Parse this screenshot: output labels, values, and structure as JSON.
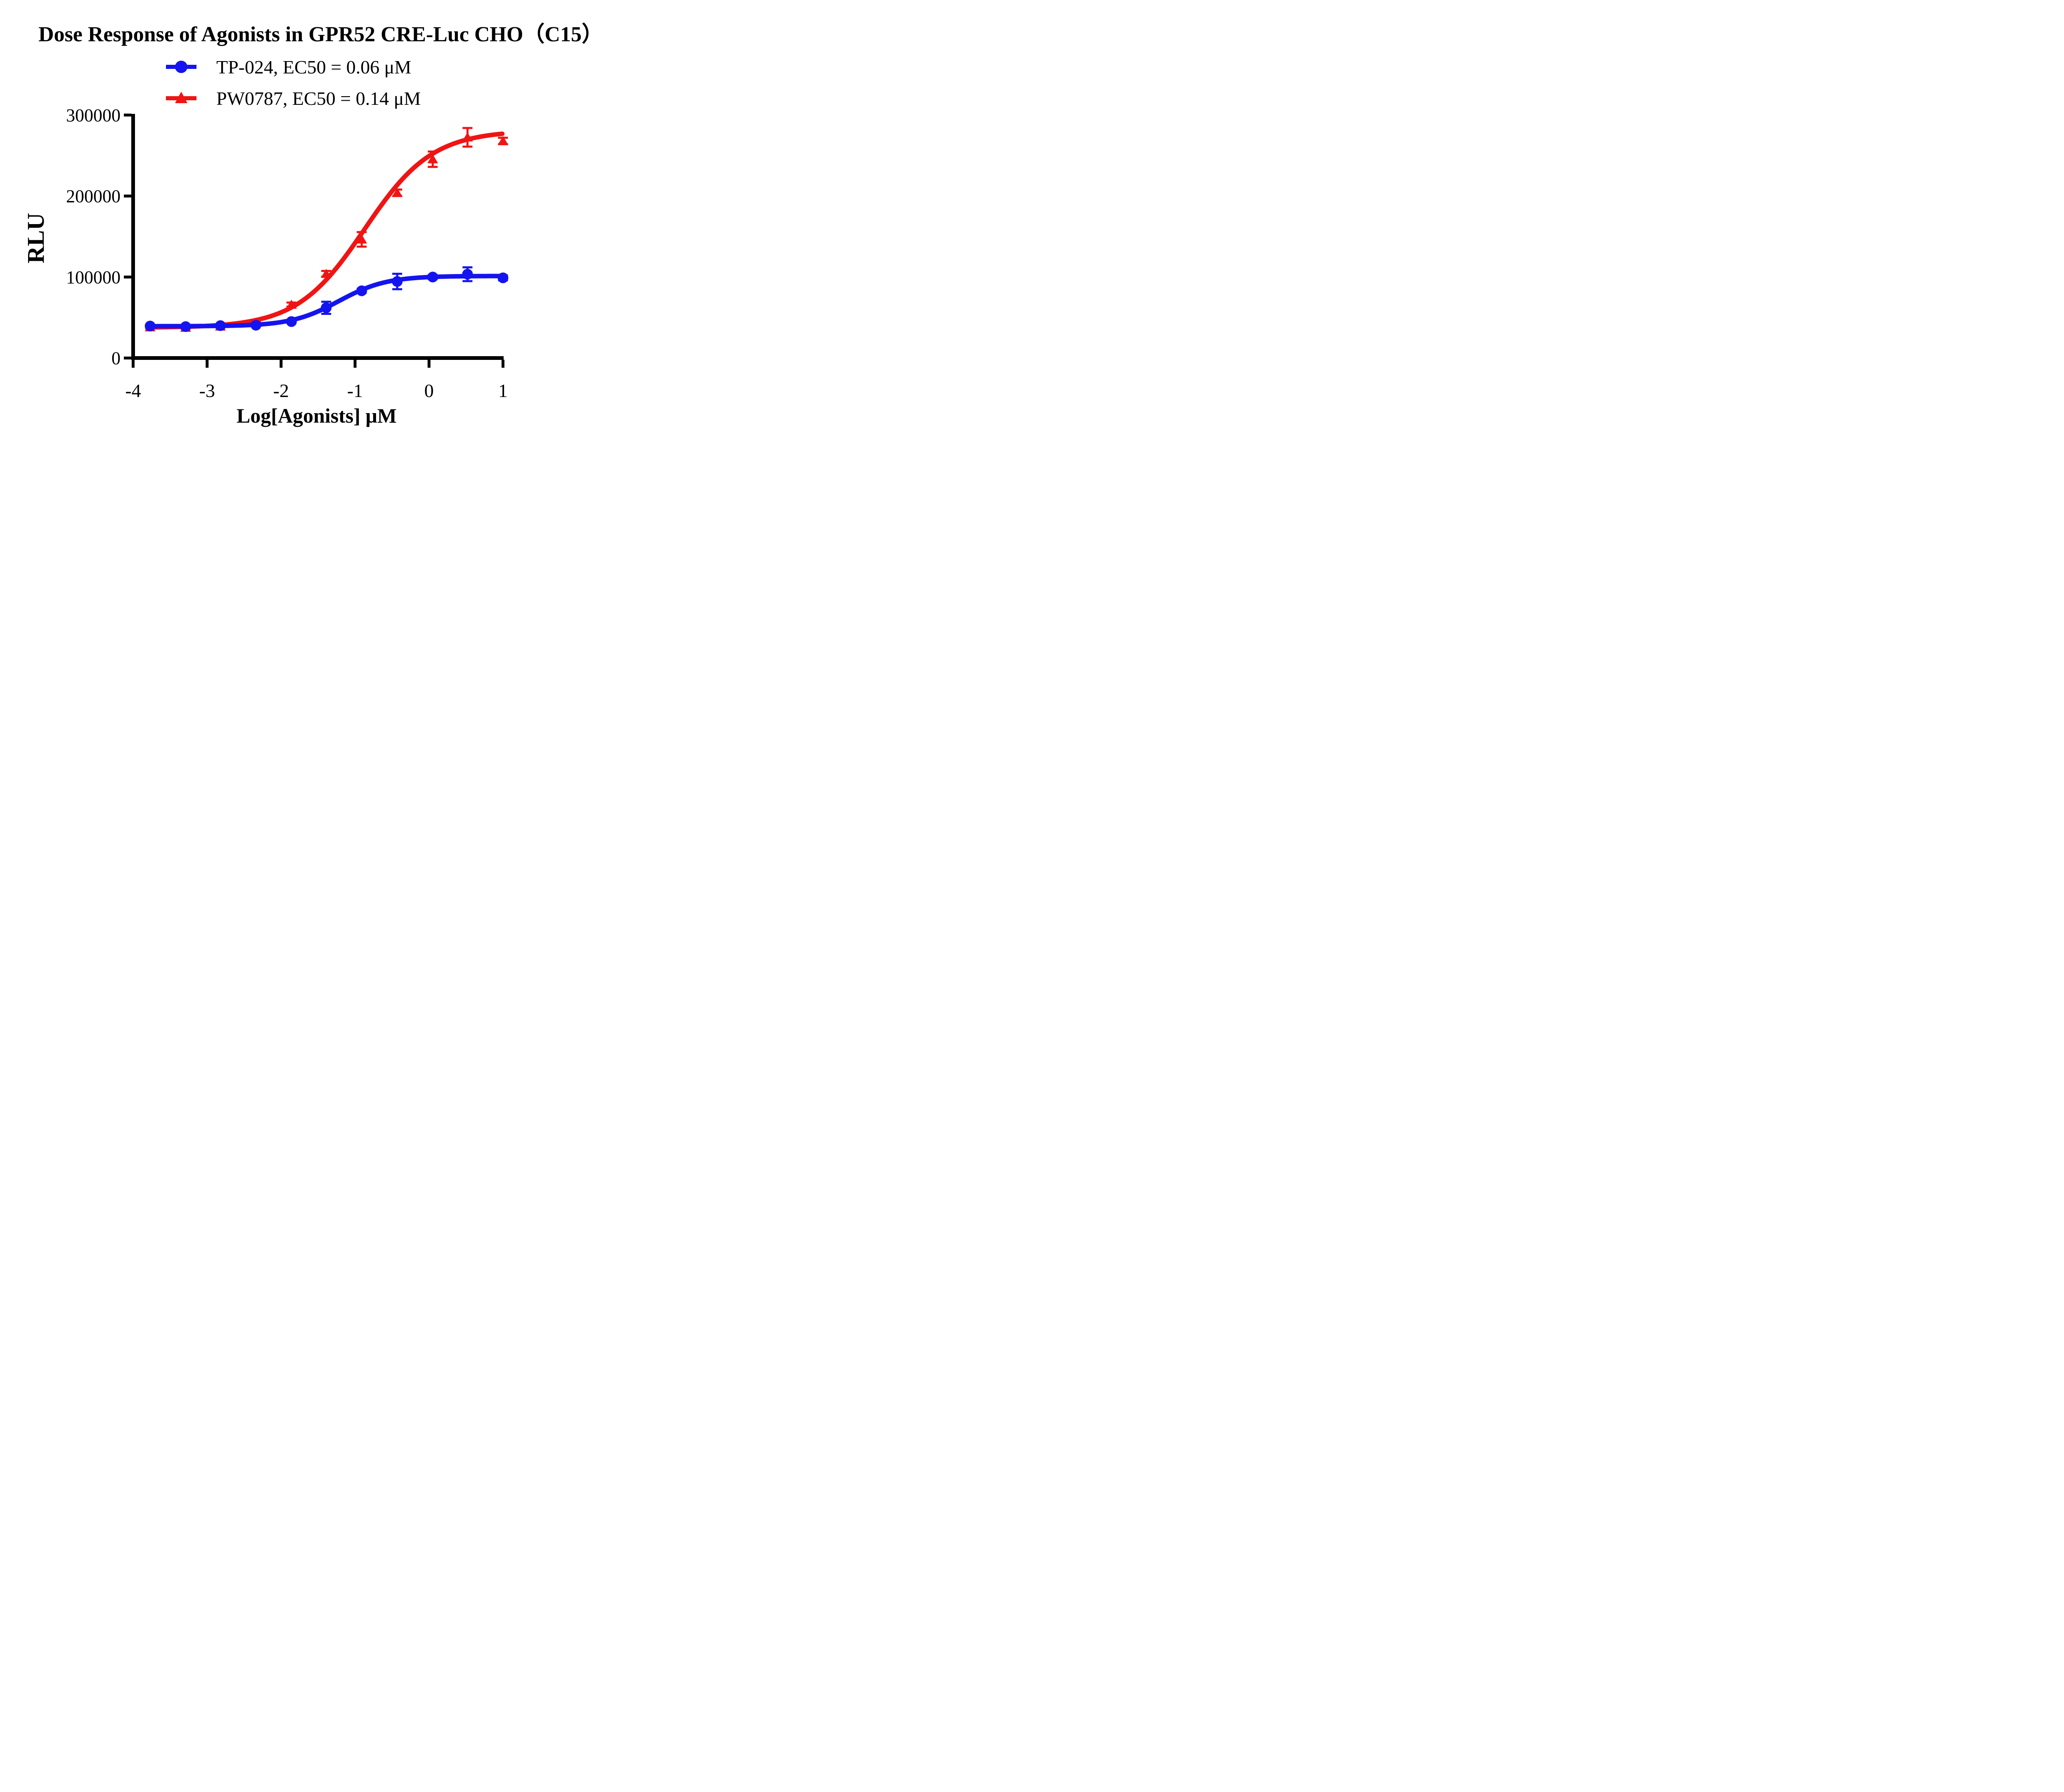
{
  "title": "Dose Response of Agonists in GPR52 CRE-Luc CHO（C15）",
  "legend": {
    "items": [
      {
        "label": "TP-024, EC50 = 0.06 μM"
      },
      {
        "label": "PW0787, EC50 = 0.14 μM"
      }
    ]
  },
  "chart_data": {
    "type": "scatter",
    "title": "Dose Response of Agonists in GPR52 CRE-Luc CHO（C15）",
    "xlabel": "Log[Agonists] μM",
    "ylabel": "RLU",
    "xlim": [
      -4,
      1
    ],
    "ylim": [
      0,
      300000
    ],
    "x_ticks": [
      -4,
      -3,
      -2,
      -1,
      0,
      1
    ],
    "y_ticks": [
      0,
      100000,
      200000,
      300000
    ],
    "grid": false,
    "legend_position": "top-center",
    "x": [
      -3.77,
      -3.29,
      -2.82,
      -2.34,
      -1.86,
      -1.39,
      -0.91,
      -0.43,
      0.05,
      0.52,
      1.0
    ],
    "series": [
      {
        "name": "TP-024",
        "label": "TP-024, EC50 = 0.06 μM",
        "ec50_uM": 0.06,
        "color": "#1414F0",
        "marker": "circle",
        "values": [
          39500,
          38800,
          40000,
          40500,
          45000,
          62000,
          83000,
          94500,
          100000,
          103500,
          99000
        ],
        "errors": [
          1500,
          1500,
          1500,
          1500,
          2000,
          7500,
          2500,
          9500,
          2500,
          8500,
          3000
        ],
        "fit": {
          "bottom": 39300,
          "top": 101300,
          "logEC50": -1.22,
          "hill": 1.35
        }
      },
      {
        "name": "PW0787",
        "label": "PW0787, EC50 = 0.14 μM",
        "ec50_uM": 0.14,
        "color": "#F01414",
        "marker": "triangle",
        "values": [
          38000,
          37500,
          39000,
          43500,
          66000,
          104000,
          146500,
          204000,
          245500,
          272500,
          268000
        ],
        "errors": [
          1500,
          1500,
          1500,
          1800,
          2500,
          3500,
          9000,
          4000,
          9500,
          11500,
          4000
        ],
        "fit": {
          "bottom": 37400,
          "top": 281000,
          "logEC50": -0.87,
          "hill": 0.95
        }
      }
    ]
  }
}
